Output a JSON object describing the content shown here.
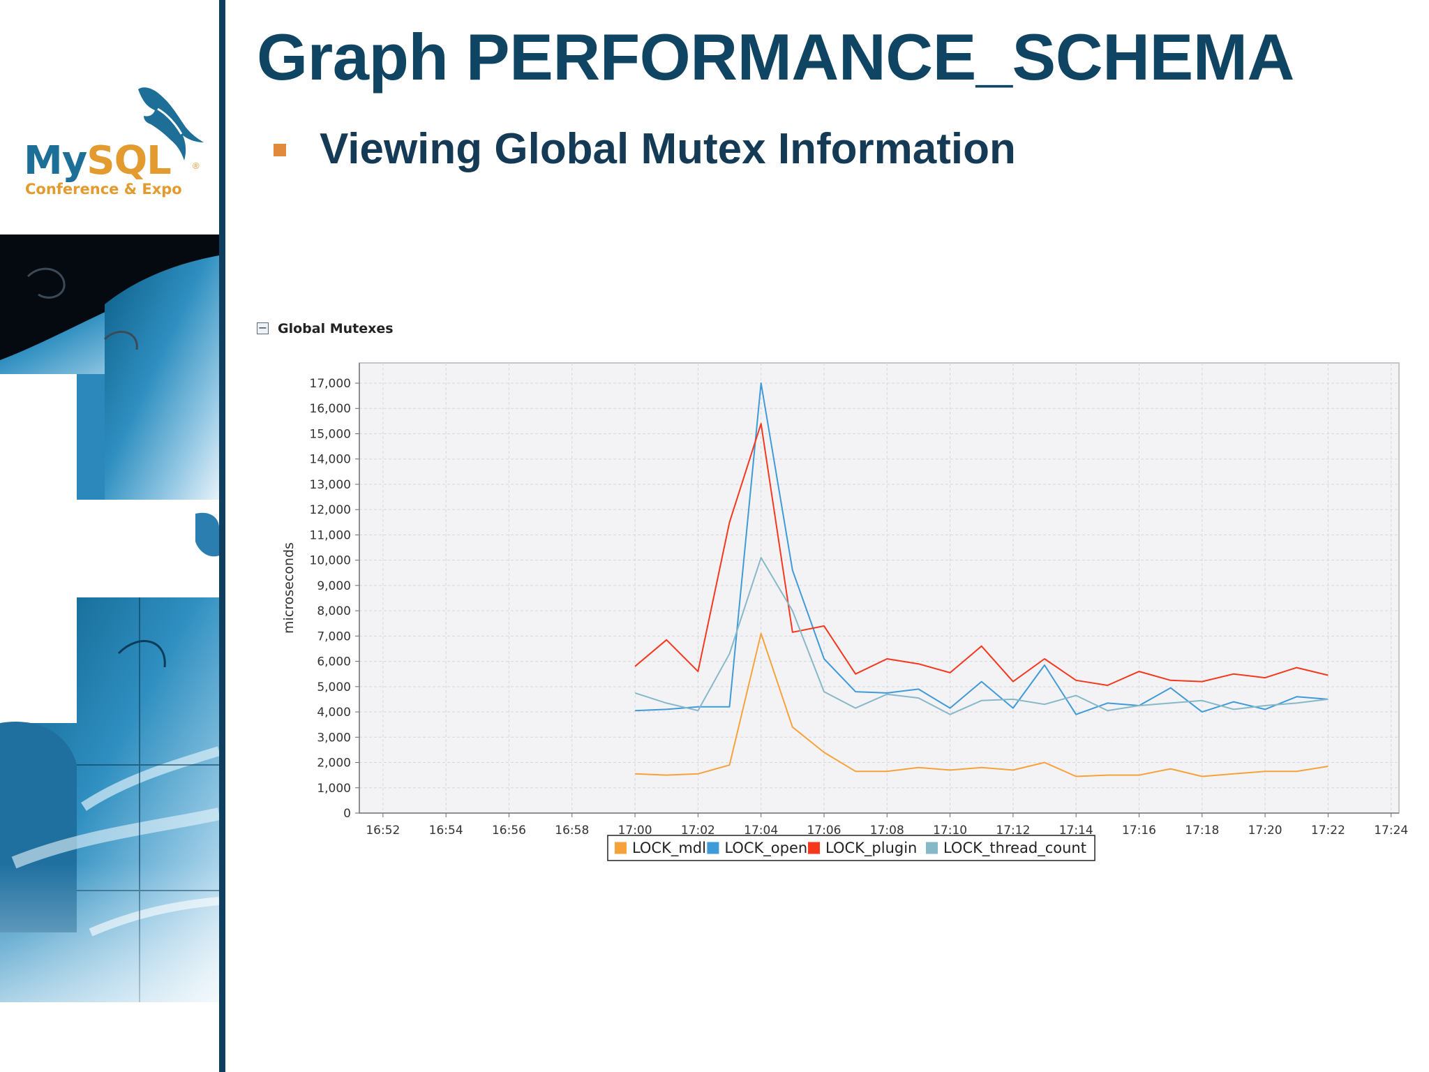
{
  "slide": {
    "title": "Graph PERFORMANCE_SCHEMA",
    "bullet": "Viewing Global Mutex Information"
  },
  "logo": {
    "word_part1": "My",
    "word_part2": "SQL",
    "registered": "®",
    "tagline": "Conference & Expo"
  },
  "panel": {
    "toggle_symbol": "−",
    "title": "Global Mutexes"
  },
  "colors": {
    "title": "#0f4563",
    "accent": "#e28a3b",
    "divider": "#0e3f5f"
  },
  "chart_data": {
    "type": "line",
    "title": "",
    "xlabel": "",
    "ylabel": "microseconds",
    "x_ticks": [
      "16:52",
      "16:54",
      "16:56",
      "16:58",
      "17:00",
      "17:02",
      "17:04",
      "17:06",
      "17:08",
      "17:10",
      "17:12",
      "17:14",
      "17:16",
      "17:18",
      "17:20",
      "17:22",
      "17:24"
    ],
    "x_range": [
      "16:51:15",
      "17:24:15"
    ],
    "y_ticks": [
      "0",
      "1,000",
      "2,000",
      "3,000",
      "4,000",
      "5,000",
      "6,000",
      "7,000",
      "8,000",
      "9,000",
      "10,000",
      "11,000",
      "12,000",
      "13,000",
      "14,000",
      "15,000",
      "16,000",
      "17,000"
    ],
    "ylim": [
      0,
      17800
    ],
    "grid": true,
    "legend_position": "bottom",
    "x": [
      "17:00",
      "17:01",
      "17:02",
      "17:03",
      "17:04",
      "17:05",
      "17:06",
      "17:07",
      "17:08",
      "17:09",
      "17:10",
      "17:11",
      "17:12",
      "17:13",
      "17:14",
      "17:15",
      "17:16",
      "17:17",
      "17:18",
      "17:19",
      "17:20",
      "17:21",
      "17:22"
    ],
    "series": [
      {
        "name": "LOCK_mdl",
        "color": "#f7a13a",
        "values": [
          1550,
          1500,
          1550,
          1900,
          7100,
          3400,
          2400,
          1650,
          1650,
          1800,
          1700,
          1800,
          1700,
          2000,
          1450,
          1500,
          1500,
          1750,
          1450,
          1550,
          1650,
          1650,
          1850
        ]
      },
      {
        "name": "LOCK_open",
        "color": "#3f9ad8",
        "values": [
          4050,
          4100,
          4200,
          4200,
          17000,
          9600,
          6100,
          4800,
          4750,
          4900,
          4150,
          5200,
          4150,
          5850,
          3900,
          4350,
          4250,
          4950,
          4000,
          4400,
          4100,
          4600,
          4500
        ]
      },
      {
        "name": "LOCK_plugin",
        "color": "#f5371d",
        "values": [
          5800,
          6850,
          5600,
          11500,
          15400,
          7150,
          7400,
          5500,
          6100,
          5900,
          5550,
          6600,
          5200,
          6100,
          5250,
          5050,
          5600,
          5250,
          5200,
          5500,
          5350,
          5750,
          5450
        ]
      },
      {
        "name": "LOCK_thread_count",
        "color": "#86b8c7",
        "values": [
          4750,
          4350,
          4050,
          6300,
          10100,
          8000,
          4800,
          4150,
          4700,
          4550,
          3900,
          4450,
          4500,
          4300,
          4650,
          4050,
          4250,
          4350,
          4450,
          4100,
          4250,
          4350,
          4500
        ]
      }
    ]
  }
}
